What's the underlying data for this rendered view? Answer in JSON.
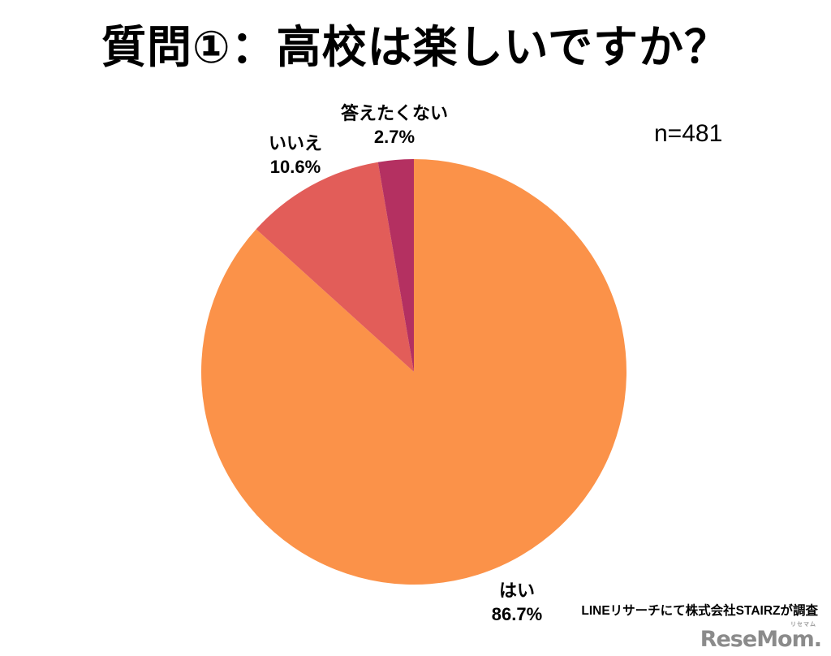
{
  "title": "質問①：高校は楽しいですか？",
  "sample_size": "n=481",
  "source_note": "LINEリサーチにて株式会社STAIRZが調査",
  "logo": {
    "text": "ReseMom.",
    "ruby": "リセマム",
    "color": "#8b8b8b"
  },
  "chart_data": {
    "type": "pie",
    "title": "質問①：高校は楽しいですか？",
    "n": 481,
    "start_angle_deg": -90,
    "direction": "clockwise",
    "legend_position": "none",
    "background": "#ffffff",
    "slices": [
      {
        "label": "はい",
        "value": 86.7,
        "pct_label": "86.7%",
        "color": "#FB9249"
      },
      {
        "label": "いいえ",
        "value": 10.6,
        "pct_label": "10.6%",
        "color": "#E25D59"
      },
      {
        "label": "答えたくない",
        "value": 2.7,
        "pct_label": "2.7%",
        "color": "#B43061"
      }
    ]
  }
}
